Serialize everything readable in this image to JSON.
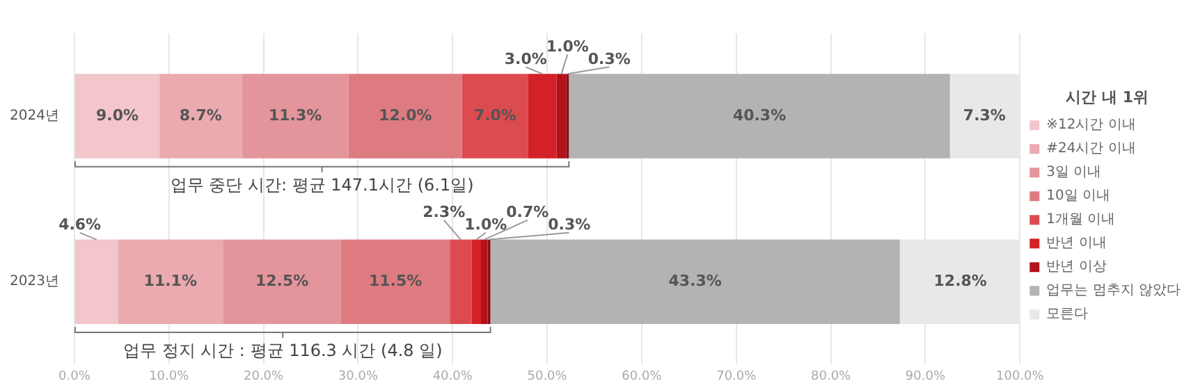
{
  "chart_data": {
    "type": "bar",
    "orientation": "horizontal",
    "stacked": true,
    "categories": [
      "2024년",
      "2023년"
    ],
    "legend_title": "시간 내 1위",
    "legend": "right",
    "grid": "x",
    "xlim": [
      0,
      100
    ],
    "xticks": [
      {
        "value": 0,
        "label": "0.0%"
      },
      {
        "value": 10,
        "label": "10.0%"
      },
      {
        "value": 20,
        "label": "20.0%"
      },
      {
        "value": 30,
        "label": "30.0%"
      },
      {
        "value": 40,
        "label": "40.0%"
      },
      {
        "value": 50,
        "label": "50.0%"
      },
      {
        "value": 60,
        "label": "60.0%"
      },
      {
        "value": 70,
        "label": "70.0%"
      },
      {
        "value": 80,
        "label": "80.0%"
      },
      {
        "value": 90,
        "label": "90.0%"
      },
      {
        "value": 100,
        "label": "100.0%"
      }
    ],
    "series": [
      {
        "name": "※12시간 이내",
        "color": "#f2c6ca",
        "values": [
          9.0,
          4.6
        ],
        "value_labels": [
          "9.0%",
          "4.6%"
        ]
      },
      {
        "name": "#24시간 이내",
        "color": "#eaaab0",
        "values": [
          8.7,
          11.1
        ],
        "value_labels": [
          "8.7%",
          "11.1%"
        ]
      },
      {
        "name": "3일 이내",
        "color": "#e3959b",
        "values": [
          11.3,
          12.5
        ],
        "value_labels": [
          "11.3%",
          "12.5%"
        ]
      },
      {
        "name": "10일 이내",
        "color": "#de7b81",
        "values": [
          12.0,
          11.5
        ],
        "value_labels": [
          "12.0%",
          "11.5%"
        ]
      },
      {
        "name": "1개월 이내",
        "color": "#dc4b50",
        "values": [
          7.0,
          2.3
        ],
        "value_labels": [
          "7.0%",
          "2.3%"
        ]
      },
      {
        "name": "반년 이내",
        "color": "#d42128",
        "values": [
          3.0,
          1.0
        ],
        "value_labels": [
          "3.0%",
          "1.0%"
        ]
      },
      {
        "name": "반년 이상",
        "color": "#b3121b",
        "values": [
          1.0,
          0.7
        ],
        "value_labels": [
          "1.0%",
          "0.7%"
        ]
      },
      {
        "color": "#8a0e14",
        "values": [
          0.3,
          0.3
        ],
        "value_labels": [
          "0.3%",
          "0.3%"
        ]
      },
      {
        "name": "업무는 멈추지 않았다",
        "color": "#b3b3b3",
        "values": [
          40.3,
          43.3
        ],
        "value_labels": [
          "40.3%",
          "43.3%"
        ]
      },
      {
        "name": "모른다",
        "color": "#e8e8e8",
        "values": [
          7.3,
          12.8
        ],
        "value_labels": [
          "7.3%",
          "12.8%"
        ]
      }
    ],
    "annotations": [
      "업무 중단 시간: 평균 147.1시간 (6.1일)",
      "업무 정지 시간 : 평균 116.3 시간 (4.8 일)"
    ]
  }
}
